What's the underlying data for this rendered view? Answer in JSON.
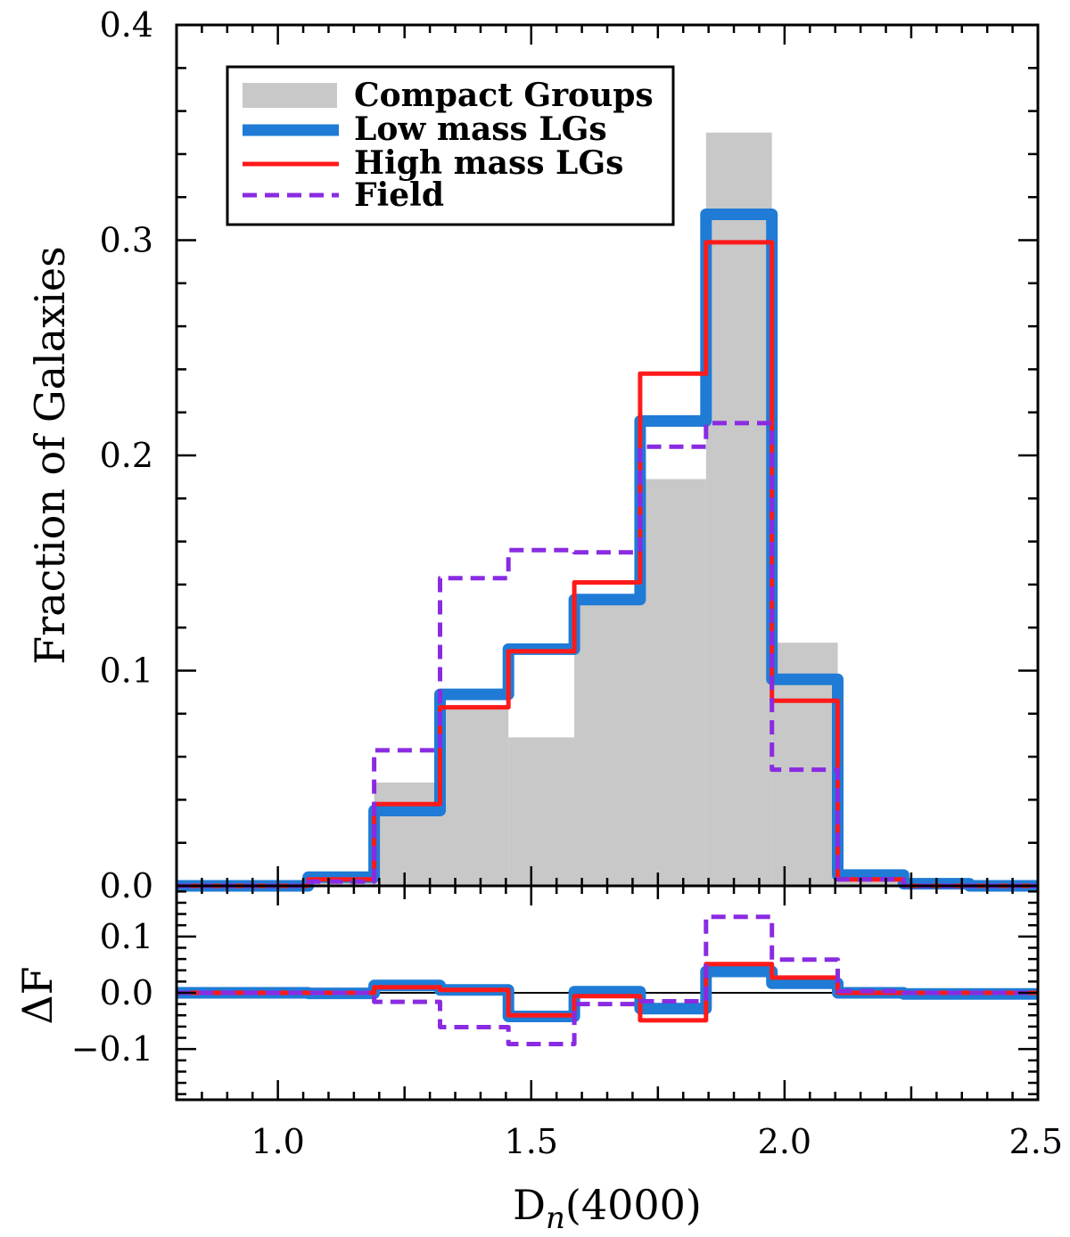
{
  "chart_data": [
    {
      "type": "line",
      "panel": "main",
      "ylabel": "Fraction of Galaxies",
      "xlim": [
        0.8,
        2.5
      ],
      "ylim": [
        0.0,
        0.4
      ],
      "x_bin_edges": [
        0.8,
        0.93,
        1.06,
        1.19,
        1.32,
        1.455,
        1.585,
        1.715,
        1.845,
        1.975,
        2.105,
        2.235,
        2.365,
        2.5
      ],
      "y_ticks": [
        "0.0",
        "0.1",
        "0.2",
        "0.3",
        "0.4"
      ],
      "y_tick_values": [
        0.0,
        0.1,
        0.2,
        0.3,
        0.4
      ],
      "series": [
        {
          "name": "Compact Groups",
          "style": "filled-step",
          "color": "#c8c8c8",
          "values": [
            0.0,
            0.0,
            0.004,
            0.048,
            0.082,
            0.069,
            0.135,
            0.189,
            0.35,
            0.113,
            0.004,
            0.0,
            0.0
          ]
        },
        {
          "name": "Low mass LGs",
          "style": "thick-step",
          "color": "#1f7bd6",
          "values": [
            0.0,
            0.0,
            0.004,
            0.035,
            0.089,
            0.11,
            0.133,
            0.216,
            0.312,
            0.096,
            0.005,
            0.001,
            0.0
          ]
        },
        {
          "name": "High mass LGs",
          "style": "step",
          "color": "#ff1a1a",
          "values": [
            0.0,
            0.0,
            0.003,
            0.038,
            0.083,
            0.109,
            0.141,
            0.238,
            0.299,
            0.086,
            0.003,
            0.0,
            0.0
          ]
        },
        {
          "name": "Field",
          "style": "dashed-step",
          "color": "#8a2be2",
          "values": [
            0.0,
            0.0,
            0.002,
            0.063,
            0.143,
            0.156,
            0.155,
            0.204,
            0.215,
            0.054,
            0.003,
            0.0,
            0.0
          ]
        }
      ],
      "legend_position": "top-left"
    },
    {
      "type": "line",
      "panel": "residual",
      "xlabel": "D_n(4000)",
      "ylabel": "ΔF",
      "xlim": [
        0.8,
        2.5
      ],
      "ylim": [
        -0.19,
        0.19
      ],
      "x_bin_edges": [
        0.8,
        0.93,
        1.06,
        1.19,
        1.32,
        1.455,
        1.585,
        1.715,
        1.845,
        1.975,
        2.105,
        2.235,
        2.365,
        2.5
      ],
      "x_ticks": [
        "1.0",
        "1.5",
        "2.0",
        "2.5"
      ],
      "x_tick_values": [
        1.0,
        1.5,
        2.0,
        2.5
      ],
      "y_ticks": [
        "0.1",
        "0.0",
        "−0.1"
      ],
      "y_tick_values": [
        0.1,
        0.0,
        -0.1
      ],
      "zero_line": true,
      "series": [
        {
          "name": "Low mass LGs",
          "style": "thick-step",
          "color": "#1f7bd6",
          "values": [
            0.0,
            0.0,
            -0.001,
            0.013,
            0.005,
            -0.042,
            0.002,
            -0.028,
            0.038,
            0.017,
            0.0,
            -0.002,
            -0.002
          ]
        },
        {
          "name": "High mass LGs",
          "style": "step",
          "color": "#ff1a1a",
          "values": [
            0.0,
            0.0,
            0.0,
            0.01,
            0.005,
            -0.04,
            -0.006,
            -0.049,
            0.051,
            0.027,
            0.0,
            0.0,
            0.0
          ]
        },
        {
          "name": "Field",
          "style": "dashed-step",
          "color": "#8a2be2",
          "values": [
            0.0,
            0.0,
            0.0,
            -0.016,
            -0.061,
            -0.091,
            -0.02,
            -0.015,
            0.135,
            0.059,
            0.003,
            0.0,
            0.0
          ]
        }
      ]
    }
  ]
}
